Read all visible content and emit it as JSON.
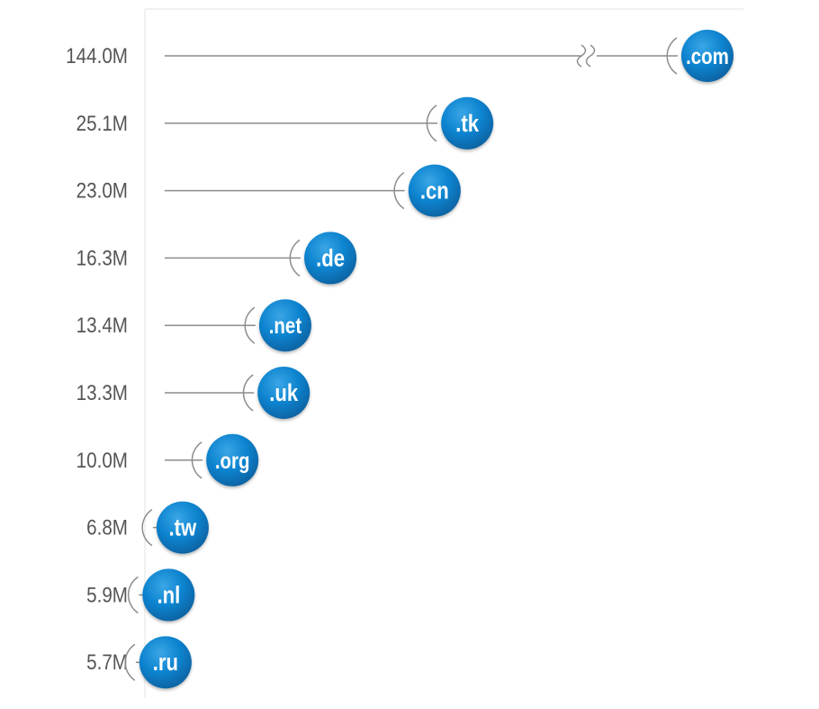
{
  "chart_data": {
    "type": "bar",
    "orientation": "horizontal",
    "value_unit": "M",
    "axis_break_on_first": true,
    "categories": [
      ".com",
      ".tk",
      ".cn",
      ".de",
      ".net",
      ".uk",
      ".org",
      ".tw",
      ".nl",
      ".ru"
    ],
    "values": [
      144.0,
      25.1,
      23.0,
      16.3,
      13.4,
      13.3,
      10.0,
      6.8,
      5.9,
      5.7
    ],
    "value_labels": [
      "144.0M",
      "25.1M",
      "23.0M",
      "16.3M",
      "13.4M",
      "13.3M",
      "10.0M",
      "6.8M",
      "5.9M",
      "5.7M"
    ],
    "grid": false,
    "legend": "none"
  },
  "colors": {
    "background": "#ffffff",
    "stem": "#8c8c8c",
    "frame": "#e3e3e3",
    "value_label": "#555555",
    "bubble_light": "#3aa6e6",
    "bubble_mid": "#0c83cf",
    "bubble_dark": "#0a63a3",
    "bubble_text": "#ffffff"
  }
}
